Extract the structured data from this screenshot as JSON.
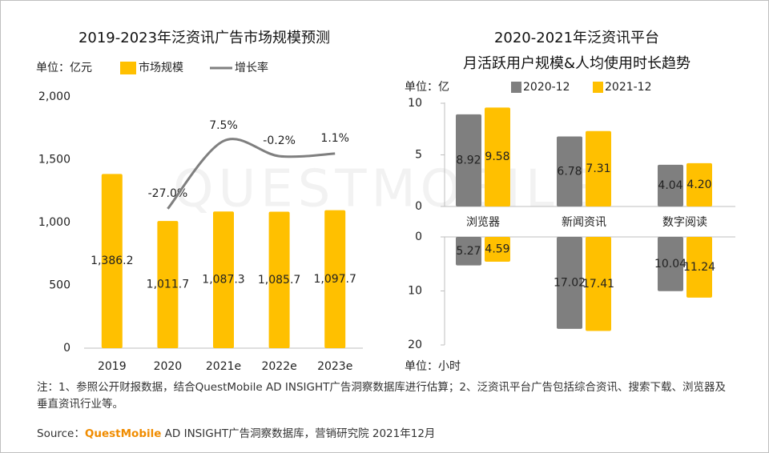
{
  "watermark": "QUESTMOBILE",
  "chart_data": [
    {
      "type": "bar",
      "title": "2019-2023年泛资讯广告市场规模预测",
      "unit_label": "单位：亿元",
      "categories": [
        "2019",
        "2020",
        "2021e",
        "2022e",
        "2023e"
      ],
      "series": [
        {
          "name": "市场规模",
          "type": "bar",
          "color": "#ffc000",
          "values": [
            1386.2,
            1011.7,
            1087.3,
            1085.7,
            1097.7
          ],
          "value_labels": [
            "1,386.2",
            "1,011.7",
            "1,087.3",
            "1,085.7",
            "1,097.7"
          ]
        },
        {
          "name": "增长率",
          "type": "line",
          "axis": "y2",
          "color": "#7f7f7f",
          "values": [
            null,
            -27.0,
            7.5,
            -0.2,
            1.1
          ],
          "value_labels": [
            null,
            "-27.0%",
            "7.5%",
            "-0.2%",
            "1.1%"
          ]
        }
      ],
      "ylim": [
        0,
        2000
      ],
      "yticks": [
        0,
        500,
        {
          "value": 1000,
          "label": "1,000"
        },
        {
          "value": 1500,
          "label": "1,500"
        },
        {
          "value": 2000,
          "label": "2,000"
        }
      ],
      "y2lim": [
        -98,
        30
      ]
    },
    {
      "type": "bar",
      "title": "2020-2021年泛资讯平台",
      "subtitle": "月活跃用户规模&人均使用时长趋势",
      "unit_label": "单位：亿",
      "categories": [
        "浏览器",
        "新闻资讯",
        "数字阅读"
      ],
      "series": [
        {
          "name": "2020-12",
          "color": "#7f7f7f",
          "values": [
            8.92,
            6.78,
            4.04
          ]
        },
        {
          "name": "2021-12",
          "color": "#ffc000",
          "values": [
            9.58,
            7.31,
            4.2
          ],
          "value_labels": [
            "9.58",
            "7.31",
            "4.20"
          ]
        }
      ],
      "ylim": [
        0,
        10
      ],
      "yticks": [
        0,
        5,
        10
      ]
    },
    {
      "type": "bar",
      "unit_label": "单位：小时",
      "inverted": true,
      "series": [
        {
          "color": "#7f7f7f",
          "values": [
            5.27,
            17.02,
            10.04
          ]
        },
        {
          "color": "#ffc000",
          "values": [
            4.59,
            17.41,
            11.24
          ]
        }
      ],
      "ylim": [
        0,
        20
      ],
      "yticks": [
        0,
        10,
        20
      ]
    }
  ],
  "notes": "注：1、参照公开财报数据，结合QuestMobile AD INSIGHT广告洞察数据库进行估算；2、泛资讯平台广告包括综合资讯、搜索下载、浏览器及垂直资讯行业等。",
  "source": {
    "label": "Source：",
    "brand": "QuestMobile",
    "text": " AD INSIGHT广告洞察数据库，营销研究院 2021年12月"
  }
}
